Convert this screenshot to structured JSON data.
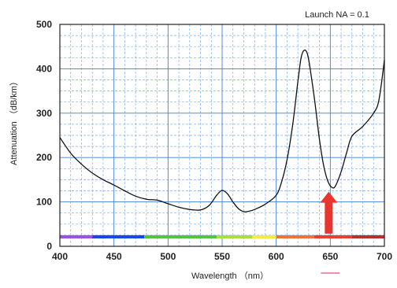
{
  "chart_data": {
    "type": "line",
    "title": "",
    "annotation": "Launch NA = 0.1",
    "xlabel": "Wavelength （nm）",
    "ylabel": "Attenuation （dB/km）",
    "xlim": [
      400,
      700
    ],
    "ylim": [
      0,
      500
    ],
    "x_ticks": [
      400,
      450,
      500,
      550,
      600,
      650,
      700
    ],
    "y_ticks": [
      0,
      100,
      200,
      300,
      400,
      500
    ],
    "grid": true,
    "legend": "none",
    "highlight": {
      "x": 650,
      "y": 130,
      "arrow_color": "#e8352e",
      "underline_color": "#e05080"
    },
    "spectrum_bar": [
      {
        "from": 400,
        "to": 430,
        "color": "#9a55e0"
      },
      {
        "from": 430,
        "to": 478,
        "color": "#1a48e6"
      },
      {
        "from": 478,
        "to": 545,
        "color": "#56c23e"
      },
      {
        "from": 545,
        "to": 578,
        "color": "#a8e03a"
      },
      {
        "from": 578,
        "to": 600,
        "color": "#f2ee3e"
      },
      {
        "from": 600,
        "to": 635,
        "color": "#f07236"
      },
      {
        "from": 635,
        "to": 670,
        "color": "#ec3d34"
      },
      {
        "from": 670,
        "to": 700,
        "color": "#b8302e"
      }
    ],
    "series": [
      {
        "color": "#111111",
        "points": [
          [
            400,
            245
          ],
          [
            410,
            210
          ],
          [
            420,
            185
          ],
          [
            430,
            165
          ],
          [
            440,
            150
          ],
          [
            450,
            138
          ],
          [
            460,
            125
          ],
          [
            470,
            113
          ],
          [
            480,
            106
          ],
          [
            490,
            104
          ],
          [
            500,
            96
          ],
          [
            510,
            88
          ],
          [
            520,
            83
          ],
          [
            530,
            82
          ],
          [
            538,
            92
          ],
          [
            545,
            115
          ],
          [
            550,
            126
          ],
          [
            555,
            118
          ],
          [
            560,
            100
          ],
          [
            565,
            85
          ],
          [
            570,
            78
          ],
          [
            575,
            79
          ],
          [
            580,
            83
          ],
          [
            590,
            95
          ],
          [
            600,
            115
          ],
          [
            605,
            145
          ],
          [
            610,
            195
          ],
          [
            615,
            270
          ],
          [
            620,
            370
          ],
          [
            623,
            425
          ],
          [
            626,
            442
          ],
          [
            629,
            432
          ],
          [
            632,
            390
          ],
          [
            636,
            320
          ],
          [
            640,
            240
          ],
          [
            644,
            180
          ],
          [
            648,
            145
          ],
          [
            652,
            132
          ],
          [
            655,
            137
          ],
          [
            660,
            168
          ],
          [
            665,
            210
          ],
          [
            670,
            248
          ],
          [
            680,
            270
          ],
          [
            690,
            300
          ],
          [
            695,
            330
          ],
          [
            700,
            420
          ]
        ]
      }
    ]
  }
}
